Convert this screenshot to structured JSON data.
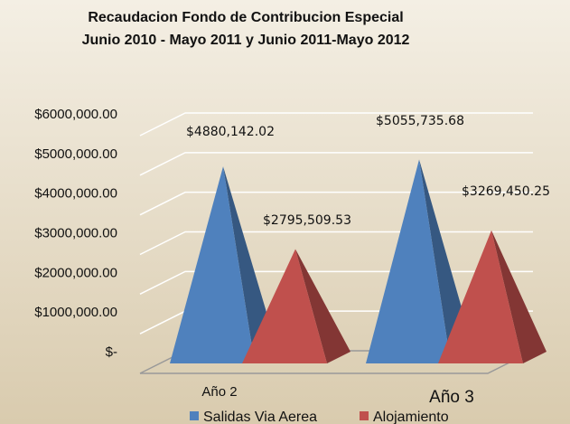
{
  "chart_data": {
    "type": "bar",
    "title": "Recaudacion Fondo de Contribucion Especial",
    "subtitle": "Junio 2010 - Mayo 2011 y Junio 2011-Mayo 2012",
    "categories": [
      "Año 2",
      "Año 3"
    ],
    "series": [
      {
        "name": "Salidas Via Aerea",
        "color": "#4f81bd",
        "values": [
          4880142.02,
          5055735.68
        ],
        "value_labels": [
          "$4880,142.02",
          "$5055,735.68"
        ]
      },
      {
        "name": "Alojamiento",
        "color": "#c0504d",
        "values": [
          2795509.53,
          3269450.25
        ],
        "value_labels": [
          "$2795,509.53",
          "$3269,450.25"
        ]
      }
    ],
    "ylim": [
      0,
      6000000
    ],
    "yticks": [
      {
        "value": 0,
        "label": "$-"
      },
      {
        "value": 1000000,
        "label": "$1000,000.00"
      },
      {
        "value": 2000000,
        "label": "$2000,000.00"
      },
      {
        "value": 3000000,
        "label": "$3000,000.00"
      },
      {
        "value": 4000000,
        "label": "$4000,000.00"
      },
      {
        "value": 5000000,
        "label": "$5000,000.00"
      },
      {
        "value": 6000000,
        "label": "$6000,000.00"
      }
    ],
    "grid": true
  }
}
